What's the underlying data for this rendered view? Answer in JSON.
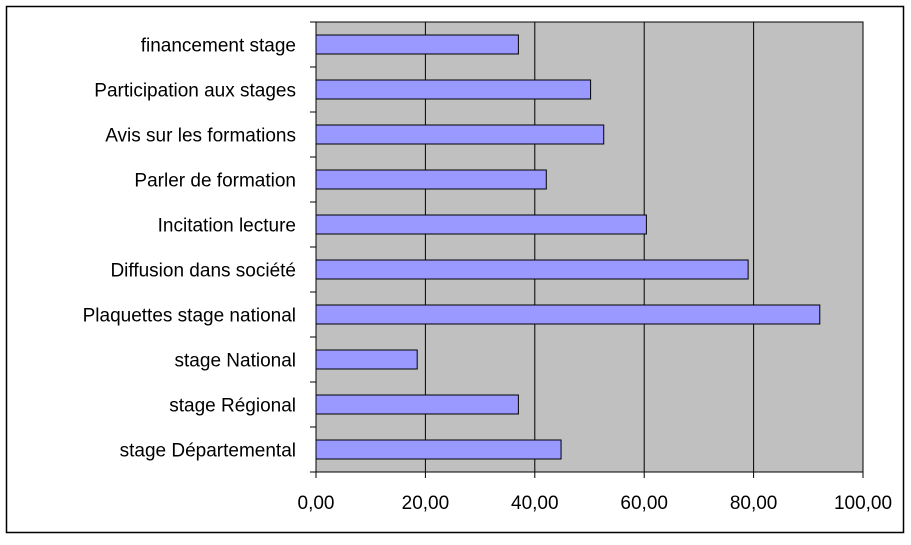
{
  "chart_data": {
    "type": "bar",
    "orientation": "horizontal",
    "categories": [
      "financement stage",
      "Participation aux stages",
      "Avis sur les formations",
      "Parler de formation",
      "Incitation lecture",
      "Diffusion dans société",
      "Plaquettes stage national",
      "stage National",
      "stage Régional",
      "stage Départemental"
    ],
    "values": [
      37.0,
      50.2,
      52.6,
      42.1,
      60.4,
      79.0,
      92.1,
      18.5,
      37.0,
      44.8
    ],
    "x_ticks": [
      "0,00",
      "20,00",
      "40,00",
      "60,00",
      "80,00",
      "100,00"
    ],
    "xlim": [
      0,
      100
    ],
    "title": "",
    "xlabel": "",
    "ylabel": "",
    "grid": "vertical",
    "legend": "none",
    "colors": {
      "bar_fill": "#9999ff",
      "bar_stroke": "#000000",
      "plot_background": "#c0c0c0",
      "frame": "#000000"
    }
  }
}
